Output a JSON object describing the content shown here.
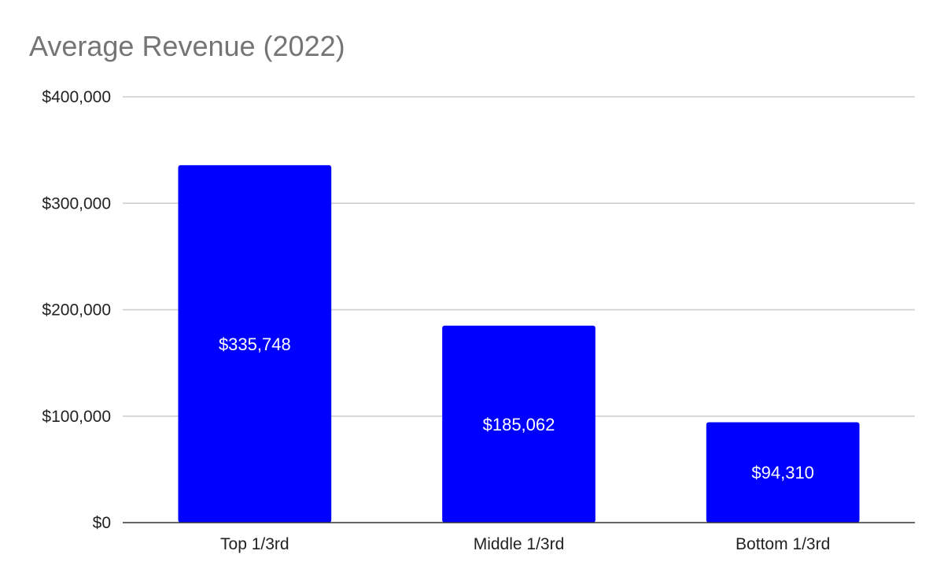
{
  "chart_data": {
    "type": "bar",
    "title": "Average Revenue (2022)",
    "categories": [
      "Top 1/3rd",
      "Middle 1/3rd",
      "Bottom 1/3rd"
    ],
    "values": [
      335748,
      185062,
      94310
    ],
    "data_labels": [
      "$335,748",
      "$185,062",
      "$94,310"
    ],
    "xlabel": "",
    "ylabel": "",
    "ylim": [
      0,
      400000
    ],
    "yticks": [
      0,
      100000,
      200000,
      300000,
      400000
    ],
    "ytick_labels": [
      "$0",
      "$100,000",
      "$200,000",
      "$300,000",
      "$400,000"
    ],
    "grid": true,
    "legend": "none",
    "bar_color": "#0000ff",
    "grid_color": "#cccccc",
    "axis_color": "#333333"
  }
}
